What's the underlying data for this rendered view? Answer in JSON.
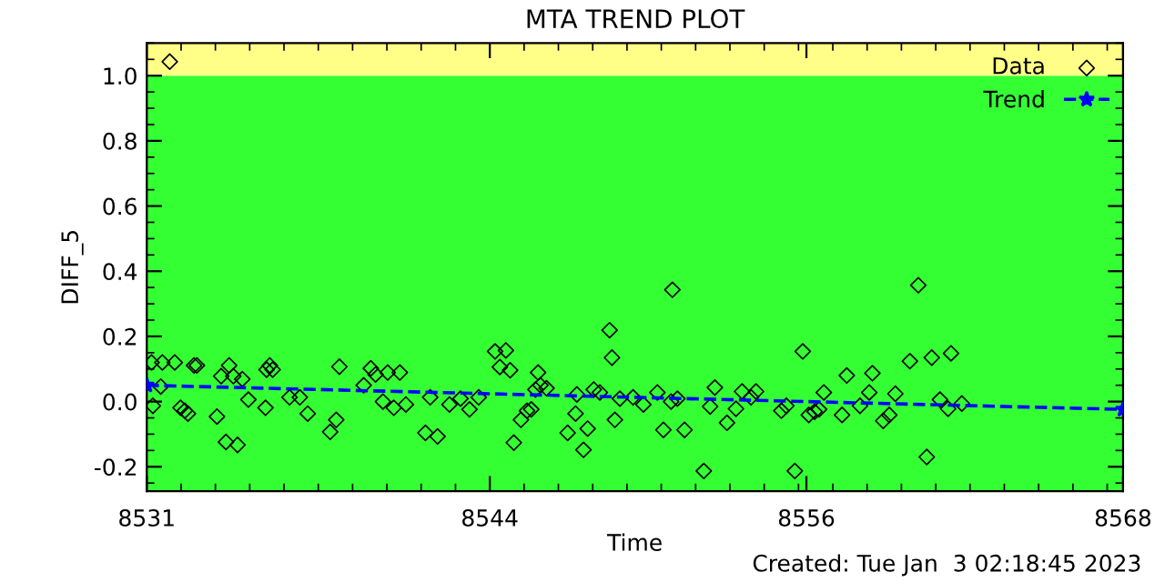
{
  "chart_data": {
    "type": "scatter",
    "title": "MTA TREND PLOT",
    "xlabel": "Time",
    "ylabel": "DIFF_5",
    "xlim": [
      8531,
      8568
    ],
    "xticks": [
      8531,
      8544,
      8556,
      8568
    ],
    "ylim": [
      -0.275,
      1.1
    ],
    "yticks": [
      {
        "value": -0.2,
        "label": "-0.2"
      },
      {
        "value": 0.0,
        "label": "0.0"
      },
      {
        "value": 0.2,
        "label": "0.2"
      },
      {
        "value": 0.4,
        "label": "0.4"
      },
      {
        "value": 0.6,
        "label": "0.6"
      },
      {
        "value": 0.8,
        "label": "0.8"
      },
      {
        "value": 1.0,
        "label": "1.0"
      }
    ],
    "bands": [
      {
        "axis": "y",
        "from": -0.275,
        "to": 1.0,
        "color": "#33ff33"
      },
      {
        "axis": "y",
        "from": 1.0,
        "to": 1.1,
        "color": "#ffff88"
      }
    ],
    "legend": "top right",
    "series": [
      {
        "name": "Data",
        "color": "#000000",
        "marker": "diamond",
        "x": [
          8531.87,
          8531.18,
          8531.59,
          8532.06,
          8531.53,
          8531.23,
          8532.79,
          8532.9,
          8532.28,
          8532.44,
          8532.56,
          8533.82,
          8534.12,
          8534.28,
          8534.62,
          8534.85,
          8535.54,
          8535.66,
          8535.77,
          8535.5,
          8533.66,
          8534.0,
          8534.44,
          8536.41,
          8536.8,
          8537.1,
          8537.95,
          8538.18,
          8538.3,
          8539.22,
          8539.49,
          8539.67,
          8539.95,
          8540.13,
          8540.36,
          8540.59,
          8540.82,
          8541.56,
          8542.02,
          8541.74,
          8542.47,
          8542.89,
          8543.23,
          8543.58,
          8544.2,
          8544.38,
          8544.61,
          8544.77,
          8544.91,
          8545.18,
          8545.41,
          8545.57,
          8545.83,
          8545.92,
          8546.15,
          8545.73,
          8546.95,
          8547.25,
          8547.3,
          8547.55,
          8547.71,
          8547.94,
          8548.17,
          8548.54,
          8548.63,
          8548.74,
          8548.93,
          8549.43,
          8549.82,
          8550.35,
          8550.58,
          8550.92,
          8550.87,
          8551.11,
          8551.38,
          8552.11,
          8552.35,
          8552.53,
          8552.99,
          8553.33,
          8553.56,
          8554.09,
          8553.9,
          8555.05,
          8555.24,
          8555.56,
          8555.86,
          8556.09,
          8556.31,
          8556.48,
          8556.66,
          8557.35,
          8557.53,
          8558.03,
          8558.38,
          8558.5,
          8558.91,
          8559.14,
          8559.37,
          8559.92,
          8560.24,
          8560.56,
          8560.75,
          8561.06,
          8561.37,
          8561.48,
          8561.89
        ],
        "values": [
          1.043,
          0.12,
          0.12,
          0.12,
          0.046,
          -0.013,
          0.111,
          0.111,
          -0.019,
          -0.028,
          -0.037,
          0.078,
          0.111,
          0.078,
          0.069,
          0.006,
          0.098,
          0.111,
          0.098,
          -0.019,
          -0.046,
          -0.124,
          -0.133,
          0.013,
          0.013,
          -0.037,
          -0.093,
          -0.056,
          0.107,
          0.05,
          0.102,
          0.083,
          0.0,
          0.089,
          -0.019,
          0.089,
          -0.009,
          -0.096,
          -0.107,
          0.013,
          -0.009,
          0.009,
          -0.024,
          0.013,
          0.154,
          0.106,
          0.157,
          0.096,
          -0.126,
          -0.056,
          -0.028,
          -0.024,
          0.089,
          0.05,
          0.041,
          0.037,
          -0.096,
          -0.037,
          0.022,
          -0.148,
          -0.083,
          0.037,
          0.028,
          0.219,
          0.135,
          -0.056,
          0.009,
          0.013,
          -0.009,
          0.028,
          -0.087,
          0.343,
          0.0,
          0.009,
          -0.087,
          -0.213,
          -0.015,
          0.043,
          -0.065,
          -0.022,
          0.031,
          0.031,
          0.013,
          -0.028,
          -0.013,
          -0.213,
          0.154,
          -0.041,
          -0.031,
          -0.024,
          0.028,
          -0.041,
          0.08,
          -0.013,
          0.028,
          0.087,
          -0.059,
          -0.041,
          0.024,
          0.124,
          0.357,
          -0.17,
          0.135,
          0.006,
          -0.022,
          0.148,
          -0.006
        ]
      },
      {
        "name": "Trend",
        "type": "line",
        "color": "#0000ff",
        "marker": "star",
        "line_style": "dashed",
        "x": [
          8531,
          8568
        ],
        "values": [
          0.05,
          -0.024
        ]
      }
    ],
    "annotations": [
      "Created: Tue Jan  3 02:18:45 2023"
    ]
  }
}
